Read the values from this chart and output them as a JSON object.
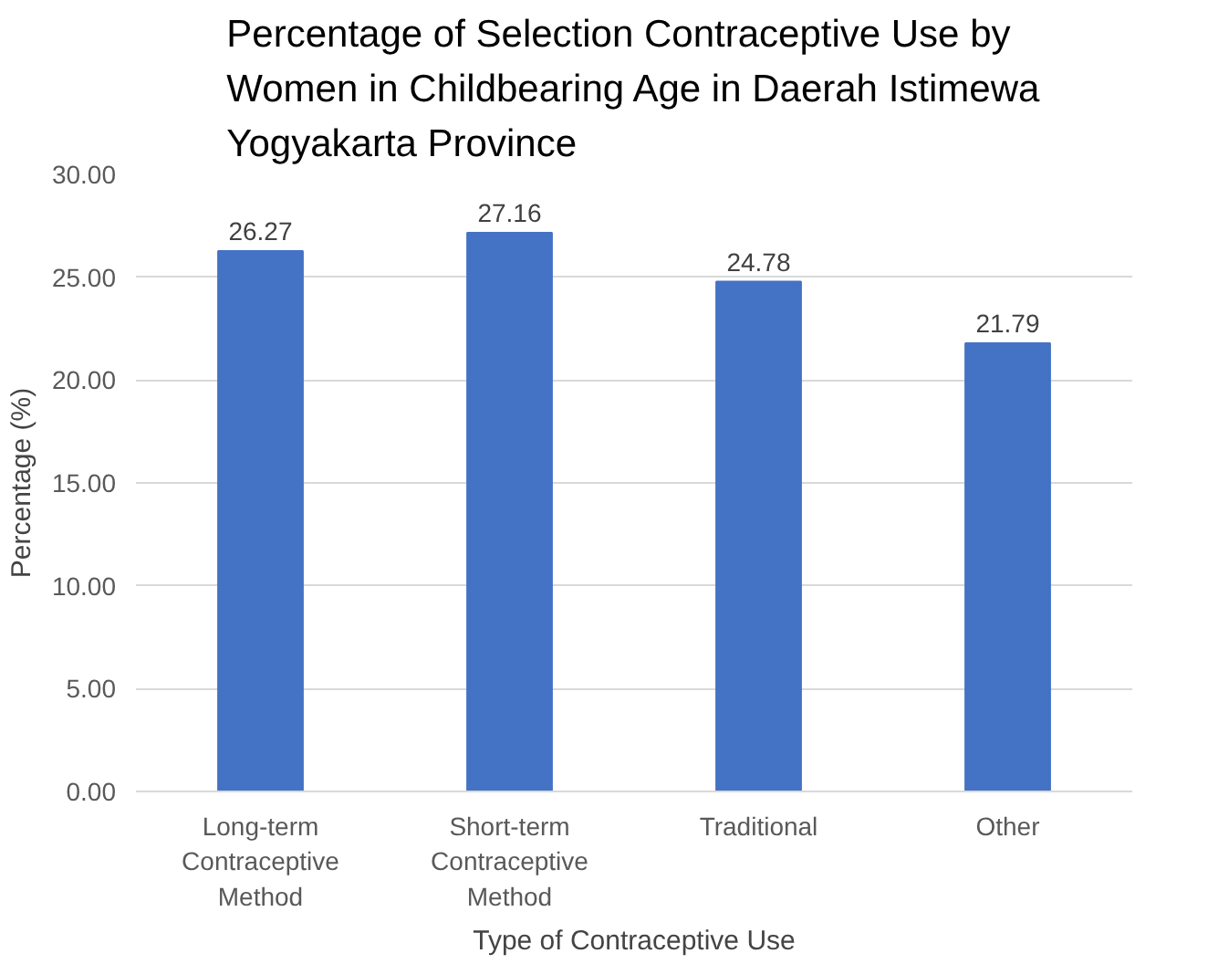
{
  "chart_data": {
    "type": "bar",
    "title": "Percentage of Selection Contraceptive Use by Women in Childbearing Age in Daerah Istimewa Yogyakarta Province",
    "xlabel": "Type of Contraceptive Use",
    "ylabel": "Percentage (%)",
    "categories": [
      "Long-term Contraceptive Method",
      "Short-term Contraceptive Method",
      "Traditional",
      "Other"
    ],
    "values": [
      26.27,
      27.16,
      24.78,
      21.79
    ],
    "color": "#4472c4",
    "ylim": [
      0,
      30
    ],
    "yticks": [
      {
        "value": 0,
        "label": "0.00"
      },
      {
        "value": 5,
        "label": "5.00"
      },
      {
        "value": 10,
        "label": "10.00"
      },
      {
        "value": 15,
        "label": "15.00"
      },
      {
        "value": 20,
        "label": "20.00"
      },
      {
        "value": 25,
        "label": "25.00"
      },
      {
        "value": 30,
        "label": "30.00"
      }
    ],
    "grid": "y",
    "data_labels": true
  }
}
